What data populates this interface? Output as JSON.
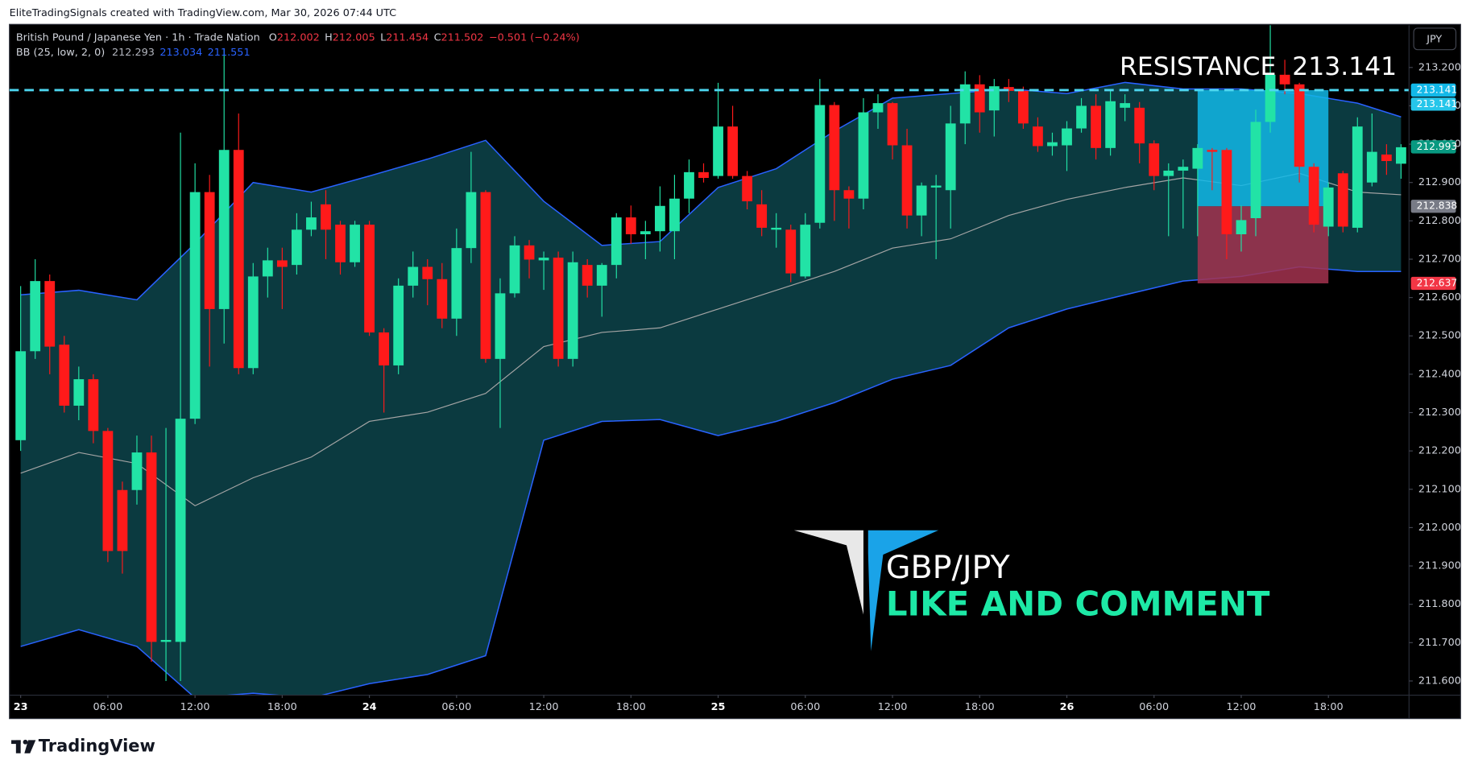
{
  "chart_data": {
    "type": "candlestick",
    "caption": "EliteTradingSignals created with TradingView.com, Mar 30, 2026 07:44 UTC",
    "title": "British Pound / Japanese Yen · 1h · Trade Nation",
    "legend_ohlc": [
      {
        "label": "O",
        "value": 212.002
      },
      {
        "label": "H",
        "value": 212.005
      },
      {
        "label": "L",
        "value": 211.454
      },
      {
        "label": "C",
        "value": 211.502
      }
    ],
    "change": "−0.501 (−0.24%)",
    "indicator": {
      "label": "BB (25, low, 2, 0)",
      "values": [
        212.293,
        213.034,
        211.551
      ]
    },
    "currency": "JPY",
    "annotations": {
      "resistance": "RESISTANCE  213.141",
      "pair": "GBP/JPY",
      "cta": "LIKE AND COMMENT"
    },
    "footer": "TradingView",
    "up_color": "#22e3a6",
    "down_color": "#ff1a1a",
    "open": [
      212.228,
      212.46,
      212.643,
      212.477,
      212.318,
      212.387,
      212.252,
      212.098,
      212.098,
      212.196,
      211.702,
      211.702,
      212.284,
      212.875,
      212.57,
      212.985,
      212.416,
      212.655,
      212.697,
      212.685,
      212.777,
      212.843,
      212.79,
      212.692,
      212.79,
      212.509,
      212.423,
      212.631,
      212.68,
      212.648,
      212.545,
      212.729,
      212.875,
      212.44,
      212.611,
      212.736,
      212.697,
      212.704,
      212.44,
      212.685,
      212.631,
      212.685,
      212.809,
      212.765,
      212.773,
      212.773,
      212.858,
      212.927,
      212.917,
      213.046,
      212.917,
      212.843,
      212.777,
      212.777,
      212.655,
      212.795,
      213.102,
      212.88,
      212.858,
      213.083,
      213.107,
      212.997,
      212.814,
      212.887,
      212.88,
      213.054,
      213.156,
      213.088,
      213.149,
      213.139,
      213.046,
      212.995,
      212.997,
      213.041,
      213.1,
      212.99,
      213.095,
      213.095,
      213.002,
      212.917,
      212.931,
      212.936,
      212.985,
      212.985,
      212.765,
      212.807,
      213.058,
      213.181,
      213.156,
      212.941,
      212.785,
      212.924,
      212.782,
      212.9,
      212.973,
      212.949
    ],
    "high": [
      212.63,
      212.7,
      212.66,
      212.5,
      212.42,
      212.4,
      212.26,
      212.12,
      212.24,
      212.24,
      212.26,
      213.03,
      212.95,
      212.92,
      213.25,
      213.08,
      212.69,
      212.73,
      212.73,
      212.82,
      212.85,
      212.88,
      212.8,
      212.8,
      212.8,
      212.52,
      212.65,
      212.72,
      212.7,
      212.69,
      212.78,
      212.98,
      212.88,
      212.65,
      212.76,
      212.75,
      212.72,
      212.72,
      212.72,
      212.7,
      212.69,
      212.82,
      212.84,
      212.8,
      212.89,
      212.92,
      212.96,
      212.95,
      213.16,
      213.1,
      212.93,
      212.88,
      212.82,
      212.79,
      212.82,
      213.17,
      213.11,
      212.89,
      213.12,
      213.13,
      213.11,
      213.04,
      212.9,
      212.92,
      213.1,
      213.19,
      213.18,
      213.17,
      213.17,
      213.15,
      213.07,
      213.03,
      213.06,
      213.12,
      213.13,
      213.14,
      213.13,
      213.11,
      213.01,
      212.95,
      212.96,
      213.0,
      212.99,
      212.99,
      212.84,
      213.09,
      213.32,
      213.22,
      213.16,
      212.95,
      212.9,
      212.93,
      213.07,
      213.08,
      213.0,
      213.0
    ],
    "low": [
      212.2,
      212.44,
      212.4,
      212.3,
      212.28,
      212.22,
      211.91,
      211.88,
      212.06,
      211.65,
      211.6,
      211.6,
      212.27,
      212.42,
      212.48,
      212.4,
      212.4,
      212.6,
      212.57,
      212.66,
      212.76,
      212.7,
      212.66,
      212.68,
      212.5,
      212.3,
      212.4,
      212.6,
      212.58,
      212.52,
      212.5,
      212.69,
      212.43,
      212.26,
      212.6,
      212.65,
      212.62,
      212.42,
      212.42,
      212.6,
      212.55,
      212.65,
      212.74,
      212.7,
      212.72,
      212.7,
      212.82,
      212.9,
      212.91,
      212.91,
      212.83,
      212.76,
      212.73,
      212.64,
      212.65,
      212.78,
      212.8,
      212.78,
      212.83,
      213.04,
      212.96,
      212.78,
      212.76,
      212.7,
      212.78,
      213.0,
      213.03,
      213.02,
      213.11,
      213.04,
      212.98,
      212.97,
      212.93,
      213.03,
      212.96,
      212.97,
      213.06,
      212.95,
      212.88,
      212.76,
      212.78,
      212.76,
      212.88,
      212.7,
      212.72,
      212.76,
      213.03,
      213.13,
      212.9,
      212.77,
      212.76,
      212.77,
      212.77,
      212.89,
      212.92,
      212.91
    ],
    "close": [
      212.46,
      212.643,
      212.472,
      212.318,
      212.387,
      212.252,
      211.939,
      211.939,
      212.196,
      211.702,
      211.707,
      212.284,
      212.875,
      212.57,
      212.985,
      212.416,
      212.655,
      212.697,
      212.68,
      212.777,
      212.809,
      212.777,
      212.692,
      212.79,
      212.509,
      212.423,
      212.631,
      212.68,
      212.648,
      212.545,
      212.729,
      212.875,
      212.44,
      212.611,
      212.736,
      212.699,
      212.704,
      212.44,
      212.692,
      212.631,
      212.685,
      212.809,
      212.765,
      212.773,
      212.839,
      212.858,
      212.927,
      212.912,
      213.046,
      212.917,
      212.851,
      212.782,
      212.782,
      212.663,
      212.79,
      213.102,
      212.88,
      212.858,
      213.083,
      213.107,
      212.997,
      212.814,
      212.892,
      212.892,
      213.054,
      213.156,
      213.083,
      213.151,
      213.139,
      213.054,
      212.995,
      213.005,
      213.041,
      213.1,
      212.99,
      213.112,
      213.107,
      213.002,
      212.917,
      212.931,
      212.941,
      212.99,
      212.98,
      212.765,
      212.802,
      213.058,
      213.181,
      213.156,
      212.941,
      212.79,
      212.887,
      212.785,
      213.046,
      212.98,
      212.956,
      212.992
    ],
    "bands": {
      "line_color": "#2962ff",
      "basis_color": "#a5a5a5",
      "fill": "#0b3a40",
      "x": [
        0,
        4,
        8,
        12,
        16,
        20,
        24,
        28,
        32,
        36,
        40,
        44,
        48,
        52,
        56,
        60,
        64,
        68,
        72,
        76,
        80,
        84,
        88,
        92,
        95
      ],
      "upper": [
        212.607,
        212.619,
        212.594,
        212.741,
        212.9,
        212.875,
        212.917,
        212.961,
        213.01,
        212.851,
        212.736,
        212.746,
        212.887,
        212.936,
        213.034,
        213.12,
        213.132,
        213.144,
        213.132,
        213.161,
        213.144,
        213.144,
        213.132,
        213.107,
        213.071
      ],
      "basis": [
        212.142,
        212.196,
        212.167,
        212.057,
        212.13,
        212.184,
        212.277,
        212.301,
        212.35,
        212.472,
        212.509,
        212.521,
        212.57,
        212.619,
        212.668,
        212.729,
        212.753,
        212.814,
        212.856,
        212.887,
        212.912,
        212.892,
        212.924,
        212.875,
        212.868
      ],
      "lower": [
        211.69,
        211.734,
        211.69,
        211.556,
        211.568,
        211.556,
        211.593,
        211.617,
        211.666,
        212.228,
        212.277,
        212.282,
        212.24,
        212.277,
        212.326,
        212.387,
        212.423,
        212.521,
        212.57,
        212.607,
        212.643,
        212.655,
        212.68,
        212.668,
        212.668
      ]
    },
    "resistance": {
      "value": 213.141,
      "color": "#4dd6f0"
    },
    "position": {
      "start": 81,
      "end": 90,
      "target": 213.141,
      "entry": 212.838,
      "stop": 212.637,
      "profit_color": "#12b8e8",
      "loss_color": "#a3334f"
    },
    "price_labels": [
      {
        "value": 213.141,
        "color": "#12b8e8"
      },
      {
        "value": 213.141,
        "color": "#26c6ea"
      },
      {
        "value": 212.993,
        "color": "#089981"
      },
      {
        "value": 212.838,
        "color": "#787b86"
      },
      {
        "value": 212.637,
        "color": "#f23645"
      }
    ],
    "ylim": [
      211.563,
      213.31
    ],
    "yticks": [
      {
        "value": 211.6,
        "label": "211.600"
      },
      {
        "value": 211.7,
        "label": "211.700"
      },
      {
        "value": 211.8,
        "label": "211.800"
      },
      {
        "value": 211.9,
        "label": "211.900"
      },
      {
        "value": 212.0,
        "label": "212.000"
      },
      {
        "value": 212.1,
        "label": "212.100"
      },
      {
        "value": 212.2,
        "label": "212.200"
      },
      {
        "value": 212.3,
        "label": "212.300"
      },
      {
        "value": 212.4,
        "label": "212.400"
      },
      {
        "value": 212.5,
        "label": "212.500"
      },
      {
        "value": 212.6,
        "label": "212.600"
      },
      {
        "value": 212.7,
        "label": "212.700"
      },
      {
        "value": 212.8,
        "label": "212.800"
      },
      {
        "value": 212.9,
        "label": "212.900"
      },
      {
        "value": 213.0,
        "label": "213.000"
      },
      {
        "value": 213.1,
        "label": "213.100"
      },
      {
        "value": 213.2,
        "label": "213.200"
      }
    ],
    "xticks": [
      {
        "value": 0,
        "label": "23"
      },
      {
        "value": 6,
        "label": "06:00"
      },
      {
        "value": 12,
        "label": "12:00"
      },
      {
        "value": 18,
        "label": "18:00"
      },
      {
        "value": 24,
        "label": "24"
      },
      {
        "value": 30,
        "label": "06:00"
      },
      {
        "value": 36,
        "label": "12:00"
      },
      {
        "value": 42,
        "label": "18:00"
      },
      {
        "value": 48,
        "label": "25"
      },
      {
        "value": 54,
        "label": "06:00"
      },
      {
        "value": 60,
        "label": "12:00"
      },
      {
        "value": 66,
        "label": "18:00"
      },
      {
        "value": 72,
        "label": "26"
      },
      {
        "value": 78,
        "label": "06:00"
      },
      {
        "value": 84,
        "label": "12:00"
      },
      {
        "value": 90,
        "label": "18:00"
      }
    ]
  }
}
